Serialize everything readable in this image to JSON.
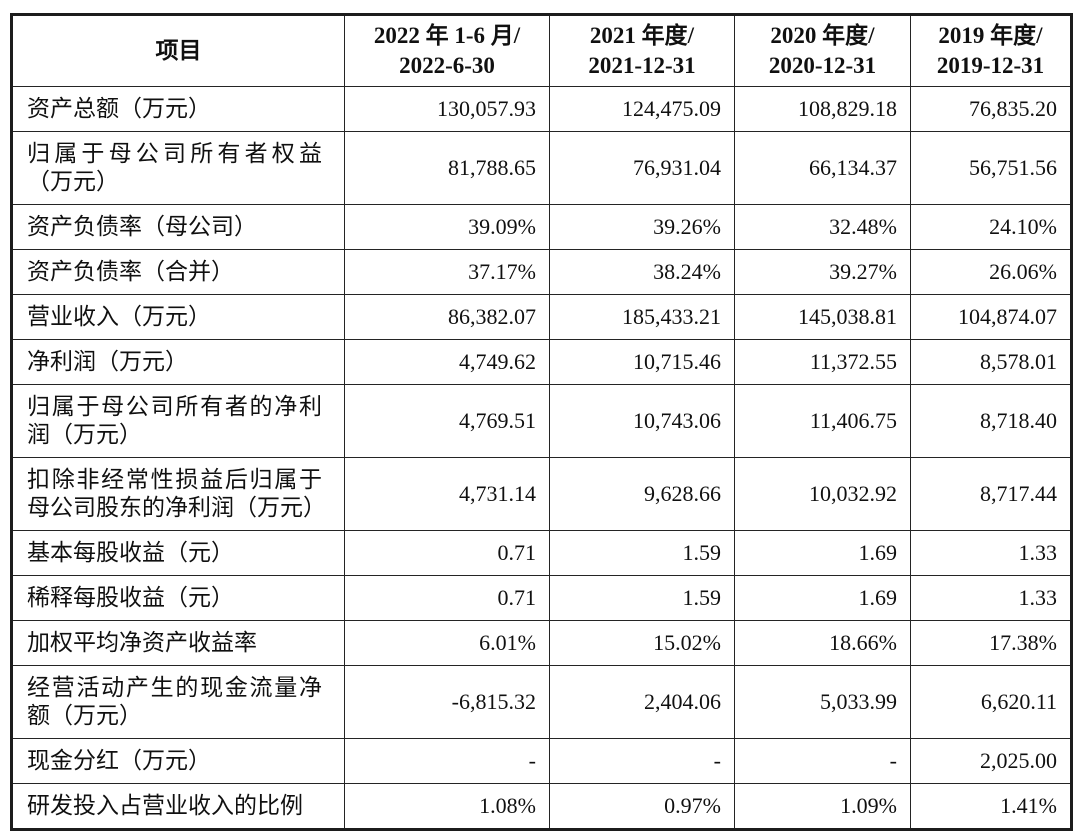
{
  "page": {
    "background_color": "#ffffff",
    "text_color": "#101010",
    "border_color": "#242424"
  },
  "table": {
    "item_header": "项目",
    "period_columns": [
      {
        "line1": "2022 年 1-6 月/",
        "line2": "2022-6-30"
      },
      {
        "line1": "2021 年度/",
        "line2": "2021-12-31"
      },
      {
        "line1": "2020 年度/",
        "line2": "2020-12-31"
      },
      {
        "line1": "2019 年度/",
        "line2": "2019-12-31"
      }
    ],
    "rows": [
      {
        "label": "资产总额（万元）",
        "values": [
          "130,057.93",
          "124,475.09",
          "108,829.18",
          "76,835.20"
        ]
      },
      {
        "label": "归属于母公司所有者权益（万元）",
        "values": [
          "81,788.65",
          "76,931.04",
          "66,134.37",
          "56,751.56"
        ]
      },
      {
        "label": "资产负债率（母公司）",
        "values": [
          "39.09%",
          "39.26%",
          "32.48%",
          "24.10%"
        ]
      },
      {
        "label": "资产负债率（合并）",
        "values": [
          "37.17%",
          "38.24%",
          "39.27%",
          "26.06%"
        ]
      },
      {
        "label": "营业收入（万元）",
        "values": [
          "86,382.07",
          "185,433.21",
          "145,038.81",
          "104,874.07"
        ]
      },
      {
        "label": "净利润（万元）",
        "values": [
          "4,749.62",
          "10,715.46",
          "11,372.55",
          "8,578.01"
        ]
      },
      {
        "label": "归属于母公司所有者的净利润（万元）",
        "values": [
          "4,769.51",
          "10,743.06",
          "11,406.75",
          "8,718.40"
        ]
      },
      {
        "label": "扣除非经常性损益后归属于母公司股东的净利润（万元）",
        "values": [
          "4,731.14",
          "9,628.66",
          "10,032.92",
          "8,717.44"
        ]
      },
      {
        "label": "基本每股收益（元）",
        "values": [
          "0.71",
          "1.59",
          "1.69",
          "1.33"
        ]
      },
      {
        "label": "稀释每股收益（元）",
        "values": [
          "0.71",
          "1.59",
          "1.69",
          "1.33"
        ]
      },
      {
        "label": "加权平均净资产收益率",
        "values": [
          "6.01%",
          "15.02%",
          "18.66%",
          "17.38%"
        ]
      },
      {
        "label": "经营活动产生的现金流量净额（万元）",
        "values": [
          "-6,815.32",
          "2,404.06",
          "5,033.99",
          "6,620.11"
        ]
      },
      {
        "label": "现金分红（万元）",
        "values": [
          "-",
          "-",
          "-",
          "2,025.00"
        ]
      },
      {
        "label": "研发投入占营业收入的比例",
        "values": [
          "1.08%",
          "0.97%",
          "1.09%",
          "1.41%"
        ]
      }
    ]
  }
}
